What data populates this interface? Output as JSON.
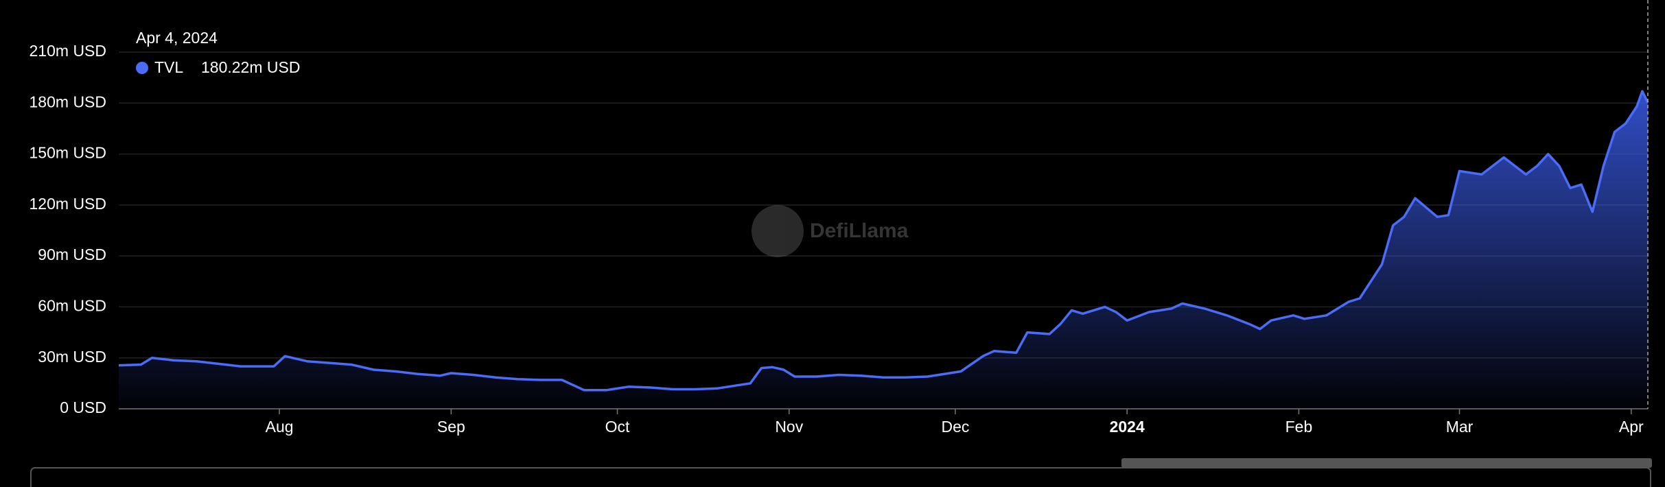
{
  "chart_data": {
    "type": "area",
    "tooltip": {
      "date": "Apr 4, 2024",
      "series": "TVL",
      "value": "180.22m USD"
    },
    "watermark": "DefiLlama",
    "x": [
      0,
      4,
      6,
      10,
      14,
      18,
      22,
      26,
      28,
      30,
      34,
      38,
      42,
      46,
      50,
      54,
      58,
      60,
      64,
      68,
      72,
      76,
      80,
      84,
      88,
      92,
      96,
      100,
      104,
      108,
      112,
      114,
      116,
      118,
      120,
      122,
      126,
      130,
      134,
      138,
      142,
      146,
      150,
      152,
      156,
      158,
      162,
      164,
      168,
      170,
      172,
      174,
      178,
      180,
      182,
      186,
      190,
      192,
      196,
      200,
      204,
      206,
      208,
      212,
      214,
      218,
      222,
      224,
      228,
      230,
      232,
      234,
      238,
      240,
      242,
      246,
      250,
      254,
      256,
      258,
      260,
      262,
      264,
      266,
      268,
      270,
      272,
      274,
      275,
      276
    ],
    "series": [
      {
        "name": "TVL",
        "color": "#4a6cf7",
        "values": [
          25.6,
          26,
          30,
          28.5,
          28,
          26.5,
          25,
          25,
          25,
          31,
          28,
          27,
          26,
          23,
          22,
          20.5,
          19.5,
          21,
          20,
          18.5,
          17.5,
          17,
          17,
          11,
          11,
          13,
          12.5,
          11.5,
          11.5,
          12,
          14,
          15,
          24,
          24.5,
          23,
          19,
          19,
          20,
          19.5,
          18.5,
          18.5,
          19,
          21,
          22,
          31,
          34,
          33,
          45,
          44,
          50,
          58,
          56,
          60,
          57,
          52,
          57,
          59,
          62,
          59,
          55,
          50,
          47,
          52,
          55,
          53,
          55,
          63,
          65,
          85,
          108,
          113,
          124,
          113,
          114,
          140,
          138,
          148,
          138,
          143,
          150,
          143,
          130,
          132,
          116,
          143,
          163,
          168,
          178,
          187,
          180.22
        ]
      }
    ],
    "xlim": [
      0,
      276
    ],
    "xticks": [
      {
        "value": 29,
        "label": "Aug"
      },
      {
        "value": 60,
        "label": "Sep"
      },
      {
        "value": 90,
        "label": "Oct"
      },
      {
        "value": 121,
        "label": "Nov"
      },
      {
        "value": 151,
        "label": "Dec"
      },
      {
        "value": 182,
        "label": "2024"
      },
      {
        "value": 213,
        "label": "Feb"
      },
      {
        "value": 242,
        "label": "Mar"
      },
      {
        "value": 273,
        "label": "Apr"
      }
    ],
    "ylim": [
      0,
      210
    ],
    "yticks": [
      {
        "value": 0,
        "label": "0 USD"
      },
      {
        "value": 30,
        "label": "30m USD"
      },
      {
        "value": 60,
        "label": "60m USD"
      },
      {
        "value": 90,
        "label": "90m USD"
      },
      {
        "value": 120,
        "label": "120m USD"
      },
      {
        "value": 150,
        "label": "150m USD"
      },
      {
        "value": 180,
        "label": "180m USD"
      },
      {
        "value": 210,
        "label": "210m USD"
      }
    ],
    "grid": true
  }
}
